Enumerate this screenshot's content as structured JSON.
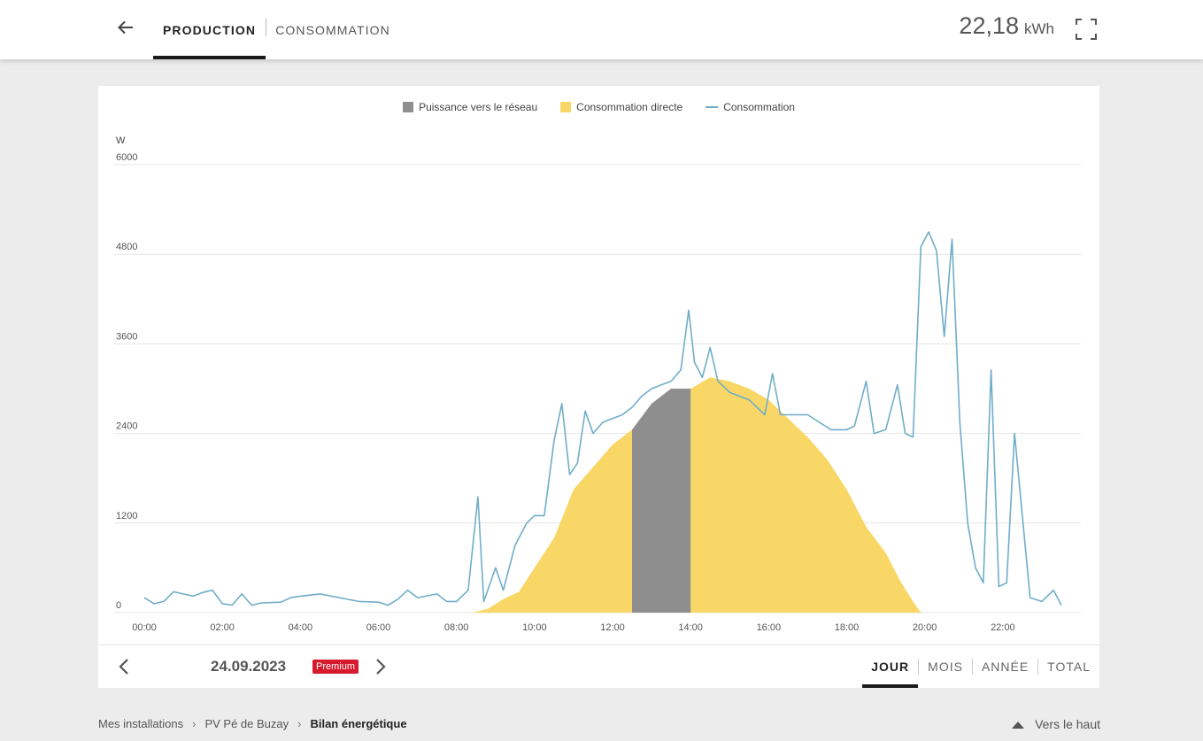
{
  "header": {
    "tabs": [
      {
        "label": "PRODUCTION",
        "active": true
      },
      {
        "label": "CONSOMMATION",
        "active": false
      }
    ],
    "total_value": "22,18",
    "total_unit": "kWh"
  },
  "chart": {
    "legend": [
      {
        "label": "Puissance vers le réseau",
        "color": "#8e8e8e"
      },
      {
        "label": "Consommation directe",
        "color": "#f9d767"
      },
      {
        "label": "Consommation",
        "color": "#6fadc9"
      }
    ]
  },
  "chart_data": {
    "type": "area",
    "ylabel": "W",
    "ylim": [
      0,
      6000
    ],
    "yticks": [
      "0",
      "1200",
      "2400",
      "3600",
      "4800",
      "6000"
    ],
    "xticks": [
      "00:00",
      "02:00",
      "04:00",
      "06:00",
      "08:00",
      "10:00",
      "12:00",
      "14:00",
      "16:00",
      "18:00",
      "20:00",
      "22:00"
    ],
    "xlim_hours": [
      0,
      24
    ],
    "grid": true,
    "legend_position": "top-center",
    "series": [
      {
        "name": "Consommation directe",
        "kind": "area",
        "color": "#f9d767",
        "points": [
          [
            8.4,
            0
          ],
          [
            8.8,
            50
          ],
          [
            9.2,
            180
          ],
          [
            9.6,
            280
          ],
          [
            10.0,
            600
          ],
          [
            10.5,
            1000
          ],
          [
            11.0,
            1650
          ],
          [
            11.5,
            1950
          ],
          [
            12.0,
            2250
          ],
          [
            12.5,
            2450
          ],
          [
            13.0,
            2700
          ],
          [
            13.5,
            2900
          ],
          [
            14.0,
            3000
          ],
          [
            14.5,
            3150
          ],
          [
            15.0,
            3100
          ],
          [
            15.5,
            3000
          ],
          [
            16.0,
            2850
          ],
          [
            16.5,
            2600
          ],
          [
            17.0,
            2350
          ],
          [
            17.5,
            2050
          ],
          [
            18.0,
            1650
          ],
          [
            18.5,
            1150
          ],
          [
            19.0,
            800
          ],
          [
            19.4,
            400
          ],
          [
            19.7,
            150
          ],
          [
            19.9,
            0
          ]
        ]
      },
      {
        "name": "Puissance vers le réseau",
        "kind": "area",
        "color": "#8e8e8e",
        "points": [
          [
            12.5,
            2450
          ],
          [
            13.0,
            2800
          ],
          [
            13.5,
            3000
          ],
          [
            14.0,
            3000
          ]
        ]
      },
      {
        "name": "Consommation",
        "kind": "line",
        "color": "#6fadc9",
        "points": [
          [
            0.0,
            200
          ],
          [
            0.25,
            120
          ],
          [
            0.5,
            150
          ],
          [
            0.75,
            280
          ],
          [
            1.0,
            250
          ],
          [
            1.25,
            220
          ],
          [
            1.5,
            270
          ],
          [
            1.75,
            300
          ],
          [
            2.0,
            120
          ],
          [
            2.25,
            100
          ],
          [
            2.5,
            250
          ],
          [
            2.75,
            100
          ],
          [
            3.0,
            130
          ],
          [
            3.5,
            140
          ],
          [
            3.75,
            200
          ],
          [
            4.0,
            220
          ],
          [
            4.5,
            250
          ],
          [
            5.0,
            200
          ],
          [
            5.5,
            150
          ],
          [
            6.0,
            140
          ],
          [
            6.25,
            100
          ],
          [
            6.5,
            180
          ],
          [
            6.75,
            300
          ],
          [
            7.0,
            200
          ],
          [
            7.5,
            250
          ],
          [
            7.75,
            150
          ],
          [
            8.0,
            150
          ],
          [
            8.3,
            300
          ],
          [
            8.55,
            1550
          ],
          [
            8.7,
            150
          ],
          [
            9.0,
            600
          ],
          [
            9.2,
            300
          ],
          [
            9.5,
            900
          ],
          [
            9.8,
            1200
          ],
          [
            10.0,
            1300
          ],
          [
            10.25,
            1300
          ],
          [
            10.5,
            2300
          ],
          [
            10.7,
            2800
          ],
          [
            10.9,
            1850
          ],
          [
            11.1,
            2000
          ],
          [
            11.3,
            2700
          ],
          [
            11.5,
            2400
          ],
          [
            11.75,
            2550
          ],
          [
            12.0,
            2600
          ],
          [
            12.25,
            2650
          ],
          [
            12.5,
            2750
          ],
          [
            12.75,
            2900
          ],
          [
            13.0,
            3000
          ],
          [
            13.25,
            3050
          ],
          [
            13.5,
            3100
          ],
          [
            13.75,
            3250
          ],
          [
            13.95,
            4050
          ],
          [
            14.1,
            3350
          ],
          [
            14.3,
            3150
          ],
          [
            14.5,
            3550
          ],
          [
            14.7,
            3100
          ],
          [
            15.0,
            2950
          ],
          [
            15.5,
            2850
          ],
          [
            15.9,
            2650
          ],
          [
            16.1,
            3200
          ],
          [
            16.3,
            2650
          ],
          [
            16.6,
            2650
          ],
          [
            17.0,
            2650
          ],
          [
            17.3,
            2550
          ],
          [
            17.6,
            2450
          ],
          [
            18.0,
            2450
          ],
          [
            18.2,
            2500
          ],
          [
            18.5,
            3100
          ],
          [
            18.7,
            2400
          ],
          [
            19.0,
            2450
          ],
          [
            19.3,
            3050
          ],
          [
            19.5,
            2400
          ],
          [
            19.7,
            2350
          ],
          [
            19.9,
            4900
          ],
          [
            20.1,
            5100
          ],
          [
            20.3,
            4850
          ],
          [
            20.5,
            3700
          ],
          [
            20.7,
            5000
          ],
          [
            20.9,
            2550
          ],
          [
            21.1,
            1200
          ],
          [
            21.3,
            600
          ],
          [
            21.5,
            400
          ],
          [
            21.7,
            3250
          ],
          [
            21.9,
            350
          ],
          [
            22.1,
            400
          ],
          [
            22.3,
            2400
          ],
          [
            22.5,
            1300
          ],
          [
            22.7,
            200
          ],
          [
            23.0,
            150
          ],
          [
            23.3,
            300
          ],
          [
            23.5,
            100
          ]
        ]
      }
    ]
  },
  "footer_nav": {
    "date": "24.09.2023",
    "badge": "Premium",
    "periods": [
      {
        "label": "JOUR",
        "active": true
      },
      {
        "label": "MOIS",
        "active": false
      },
      {
        "label": "ANNÉE",
        "active": false
      },
      {
        "label": "TOTAL",
        "active": false
      }
    ]
  },
  "breadcrumb": {
    "items": [
      "Mes installations",
      "PV Pé de Buzay",
      "Bilan énergétique"
    ]
  },
  "back_to_top": "Vers le haut",
  "icons": {
    "back": "arrow-left-icon",
    "fullscreen": "fullscreen-icon",
    "prev": "chevron-left-icon",
    "next": "chevron-right-icon",
    "top": "triangle-up-icon"
  }
}
